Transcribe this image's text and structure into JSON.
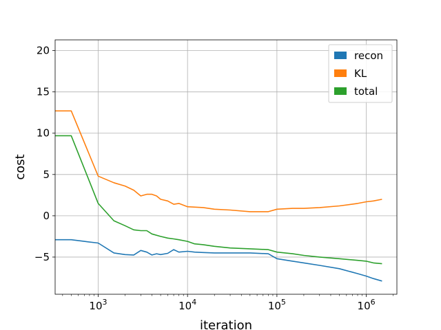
{
  "chart_data": {
    "type": "line",
    "title": "",
    "xlabel": "iteration",
    "ylabel": "cost",
    "xscale": "log",
    "xlim": [
      330,
      2200000
    ],
    "ylim": [
      -9.5,
      21.3
    ],
    "grid": true,
    "legend": "top-right",
    "x_ticks": [
      {
        "value": 1000,
        "label": "10^3"
      },
      {
        "value": 10000,
        "label": "10^4"
      },
      {
        "value": 100000,
        "label": "10^5"
      },
      {
        "value": 1000000,
        "label": "10^6"
      }
    ],
    "y_ticks": [
      -5,
      0,
      5,
      10,
      15,
      20
    ],
    "series": [
      {
        "name": "recon",
        "color": "#1f77b4",
        "points": [
          [
            330,
            -2.9
          ],
          [
            500,
            -2.9
          ],
          [
            700,
            -3.1
          ],
          [
            1000,
            -3.3
          ],
          [
            1500,
            -4.5
          ],
          [
            2000,
            -4.7
          ],
          [
            2500,
            -4.75
          ],
          [
            3000,
            -4.2
          ],
          [
            3500,
            -4.4
          ],
          [
            4000,
            -4.75
          ],
          [
            4500,
            -4.6
          ],
          [
            5000,
            -4.7
          ],
          [
            6000,
            -4.55
          ],
          [
            7000,
            -4.1
          ],
          [
            8000,
            -4.4
          ],
          [
            10000,
            -4.3
          ],
          [
            12000,
            -4.4
          ],
          [
            15000,
            -4.45
          ],
          [
            20000,
            -4.5
          ],
          [
            30000,
            -4.5
          ],
          [
            50000,
            -4.5
          ],
          [
            80000,
            -4.6
          ],
          [
            100000,
            -5.2
          ],
          [
            150000,
            -5.5
          ],
          [
            200000,
            -5.7
          ],
          [
            300000,
            -6.0
          ],
          [
            500000,
            -6.4
          ],
          [
            800000,
            -7.0
          ],
          [
            1000000,
            -7.3
          ],
          [
            1200000,
            -7.6
          ],
          [
            1500000,
            -7.9
          ]
        ]
      },
      {
        "name": "KL",
        "color": "#ff7f0e",
        "points": [
          [
            330,
            12.7
          ],
          [
            500,
            12.7
          ],
          [
            1000,
            4.8
          ],
          [
            1500,
            4.0
          ],
          [
            2000,
            3.6
          ],
          [
            2500,
            3.1
          ],
          [
            3000,
            2.4
          ],
          [
            3500,
            2.6
          ],
          [
            4000,
            2.6
          ],
          [
            4500,
            2.4
          ],
          [
            5000,
            2.0
          ],
          [
            6000,
            1.8
          ],
          [
            7000,
            1.4
          ],
          [
            8000,
            1.5
          ],
          [
            10000,
            1.1
          ],
          [
            15000,
            1.0
          ],
          [
            20000,
            0.8
          ],
          [
            30000,
            0.7
          ],
          [
            50000,
            0.5
          ],
          [
            80000,
            0.5
          ],
          [
            100000,
            0.8
          ],
          [
            150000,
            0.9
          ],
          [
            200000,
            0.9
          ],
          [
            300000,
            1.0
          ],
          [
            500000,
            1.2
          ],
          [
            800000,
            1.5
          ],
          [
            1000000,
            1.7
          ],
          [
            1200000,
            1.8
          ],
          [
            1500000,
            2.0
          ]
        ]
      },
      {
        "name": "total",
        "color": "#2ca02c",
        "points": [
          [
            330,
            9.7
          ],
          [
            500,
            9.7
          ],
          [
            1000,
            1.5
          ],
          [
            1500,
            -0.6
          ],
          [
            2000,
            -1.2
          ],
          [
            2500,
            -1.7
          ],
          [
            3000,
            -1.8
          ],
          [
            3500,
            -1.8
          ],
          [
            4000,
            -2.2
          ],
          [
            5000,
            -2.5
          ],
          [
            6000,
            -2.7
          ],
          [
            7000,
            -2.8
          ],
          [
            8000,
            -2.9
          ],
          [
            10000,
            -3.1
          ],
          [
            12000,
            -3.4
          ],
          [
            15000,
            -3.5
          ],
          [
            20000,
            -3.7
          ],
          [
            30000,
            -3.9
          ],
          [
            50000,
            -4.0
          ],
          [
            80000,
            -4.1
          ],
          [
            100000,
            -4.4
          ],
          [
            150000,
            -4.6
          ],
          [
            200000,
            -4.8
          ],
          [
            300000,
            -5.0
          ],
          [
            500000,
            -5.2
          ],
          [
            800000,
            -5.4
          ],
          [
            1000000,
            -5.5
          ],
          [
            1200000,
            -5.7
          ],
          [
            1500000,
            -5.8
          ]
        ]
      }
    ]
  }
}
